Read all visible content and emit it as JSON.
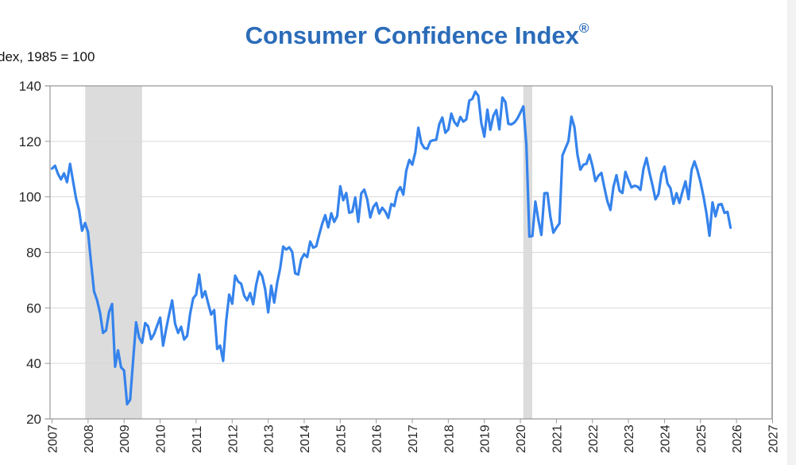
{
  "header": {
    "title": "Consumer Confidence Index",
    "title_superscript": "®",
    "axis_note": "dex, 1985 = 100"
  },
  "chart_data": {
    "type": "line",
    "title": "Consumer Confidence Index®",
    "ylabel": "dex, 1985 = 100",
    "xlabel": "",
    "grid": true,
    "legend": "none",
    "ylim": [
      20,
      140
    ],
    "xlim": [
      2007,
      2027
    ],
    "y_tick_labels": [
      20,
      40,
      60,
      80,
      100,
      120,
      140
    ],
    "x_tick_labels": [
      2007,
      2008,
      2009,
      2010,
      2011,
      2012,
      2013,
      2014,
      2015,
      2016,
      2017,
      2018,
      2019,
      2020,
      2021,
      2022,
      2023,
      2024,
      2025,
      2026,
      2027
    ],
    "recession_bands": [
      {
        "start": 2007.92,
        "end": 2009.5
      },
      {
        "start": 2020.08,
        "end": 2020.33
      }
    ],
    "series": [
      {
        "name": "Consumer Confidence Index",
        "frequency": "monthly",
        "start": "2007-01",
        "end": "2025-11",
        "values": [
          110.2,
          111.2,
          108.2,
          106.3,
          108.5,
          105.3,
          111.9,
          105.6,
          99.5,
          95.2,
          87.8,
          90.6,
          87.3,
          76.4,
          65.9,
          62.8,
          58.1,
          51.0,
          51.9,
          58.5,
          61.4,
          38.8,
          44.7,
          38.6,
          37.4,
          25.3,
          26.9,
          40.8,
          54.8,
          49.3,
          47.4,
          54.5,
          53.4,
          48.7,
          50.6,
          53.6,
          56.5,
          46.4,
          52.3,
          57.7,
          62.7,
          54.3,
          51.0,
          53.2,
          48.6,
          49.9,
          57.8,
          63.4,
          64.8,
          72.0,
          63.8,
          66.0,
          61.7,
          57.6,
          59.2,
          45.2,
          46.4,
          40.9,
          55.2,
          64.8,
          61.5,
          71.6,
          69.5,
          68.7,
          64.4,
          62.7,
          65.4,
          61.3,
          68.4,
          73.1,
          71.5,
          66.7,
          58.4,
          68.0,
          61.9,
          69.0,
          74.3,
          82.1,
          81.0,
          81.8,
          80.2,
          72.4,
          72.0,
          77.5,
          79.4,
          78.3,
          83.9,
          81.7,
          82.2,
          86.4,
          90.3,
          93.4,
          89.0,
          94.1,
          91.0,
          93.1,
          103.8,
          98.8,
          101.4,
          94.3,
          94.6,
          99.8,
          91.0,
          101.3,
          102.6,
          99.1,
          92.6,
          96.3,
          97.8,
          94.0,
          96.1,
          94.7,
          92.4,
          97.4,
          96.7,
          101.8,
          103.5,
          100.8,
          109.4,
          113.3,
          111.6,
          116.1,
          124.9,
          119.4,
          117.6,
          117.3,
          120.0,
          120.4,
          120.6,
          126.2,
          128.6,
          123.1,
          124.3,
          130.0,
          127.0,
          125.6,
          128.8,
          127.1,
          127.9,
          134.7,
          135.3,
          137.9,
          136.4,
          126.6,
          121.7,
          131.4,
          124.2,
          129.2,
          131.3,
          124.3,
          135.8,
          134.2,
          126.3,
          126.1,
          126.8,
          128.2,
          130.4,
          132.6,
          118.8,
          85.7,
          85.9,
          98.3,
          91.7,
          86.3,
          101.3,
          101.4,
          92.9,
          87.1,
          88.9,
          90.4,
          114.9,
          117.5,
          120.0,
          128.9,
          125.1,
          115.2,
          109.8,
          111.6,
          111.9,
          115.2,
          111.1,
          105.7,
          107.6,
          108.6,
          103.2,
          98.4,
          95.3,
          103.6,
          107.8,
          102.2,
          101.4,
          109.0,
          106.0,
          103.4,
          104.0,
          103.7,
          102.5,
          110.1,
          114.0,
          108.7,
          104.3,
          99.1,
          101.0,
          108.3,
          110.9,
          104.8,
          103.1,
          97.5,
          101.3,
          97.8,
          101.9,
          105.6,
          99.2,
          109.6,
          112.8,
          109.5,
          105.3,
          100.1,
          93.9,
          86.0,
          98.0,
          93.0,
          97.2,
          97.4,
          94.2,
          94.6,
          88.9
        ]
      }
    ],
    "colors": {
      "line": "#3583ec",
      "band": "#dcdcdc",
      "grid": "#d9d9d9",
      "frame": "#999999",
      "title": "#2b6cb9",
      "tick_text": "#262626"
    }
  }
}
